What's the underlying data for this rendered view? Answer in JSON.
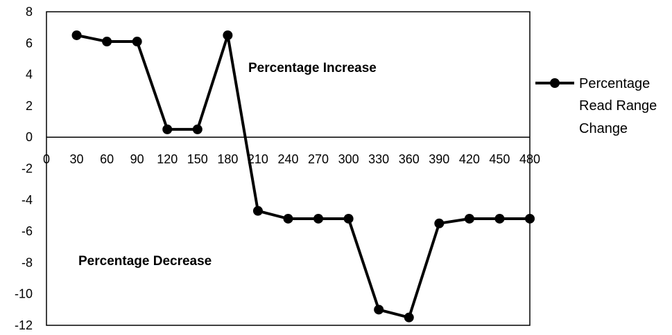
{
  "chart_data": {
    "type": "line",
    "x": [
      30,
      60,
      90,
      120,
      150,
      180,
      210,
      240,
      270,
      300,
      330,
      360,
      390,
      420,
      450,
      480
    ],
    "series": [
      {
        "name": "Percentage Read Range Change",
        "values": [
          6.5,
          6.1,
          6.1,
          0.5,
          0.5,
          6.5,
          -4.7,
          -5.2,
          -5.2,
          -5.2,
          -11.0,
          -11.5,
          -5.5,
          -5.2,
          -5.2,
          -5.2
        ]
      }
    ],
    "xlim": [
      0,
      480
    ],
    "ylim": [
      -12,
      8
    ],
    "xticks": [
      "0",
      "30",
      "60",
      "90",
      "120",
      "150",
      "180",
      "210",
      "240",
      "270",
      "300",
      "330",
      "360",
      "390",
      "420",
      "450",
      "480"
    ],
    "yticks": [
      "8",
      "6",
      "4",
      "2",
      "0",
      "-2",
      "-4",
      "-6",
      "-8",
      "-10",
      "-12"
    ],
    "annotations": [
      {
        "text": "Percentage Increase"
      },
      {
        "text": "Percentage Decrease"
      }
    ],
    "legend": {
      "position": "right",
      "lines": [
        "Percentage",
        "Read Range",
        "Change"
      ]
    },
    "grid": false,
    "line_color": "#000000"
  }
}
